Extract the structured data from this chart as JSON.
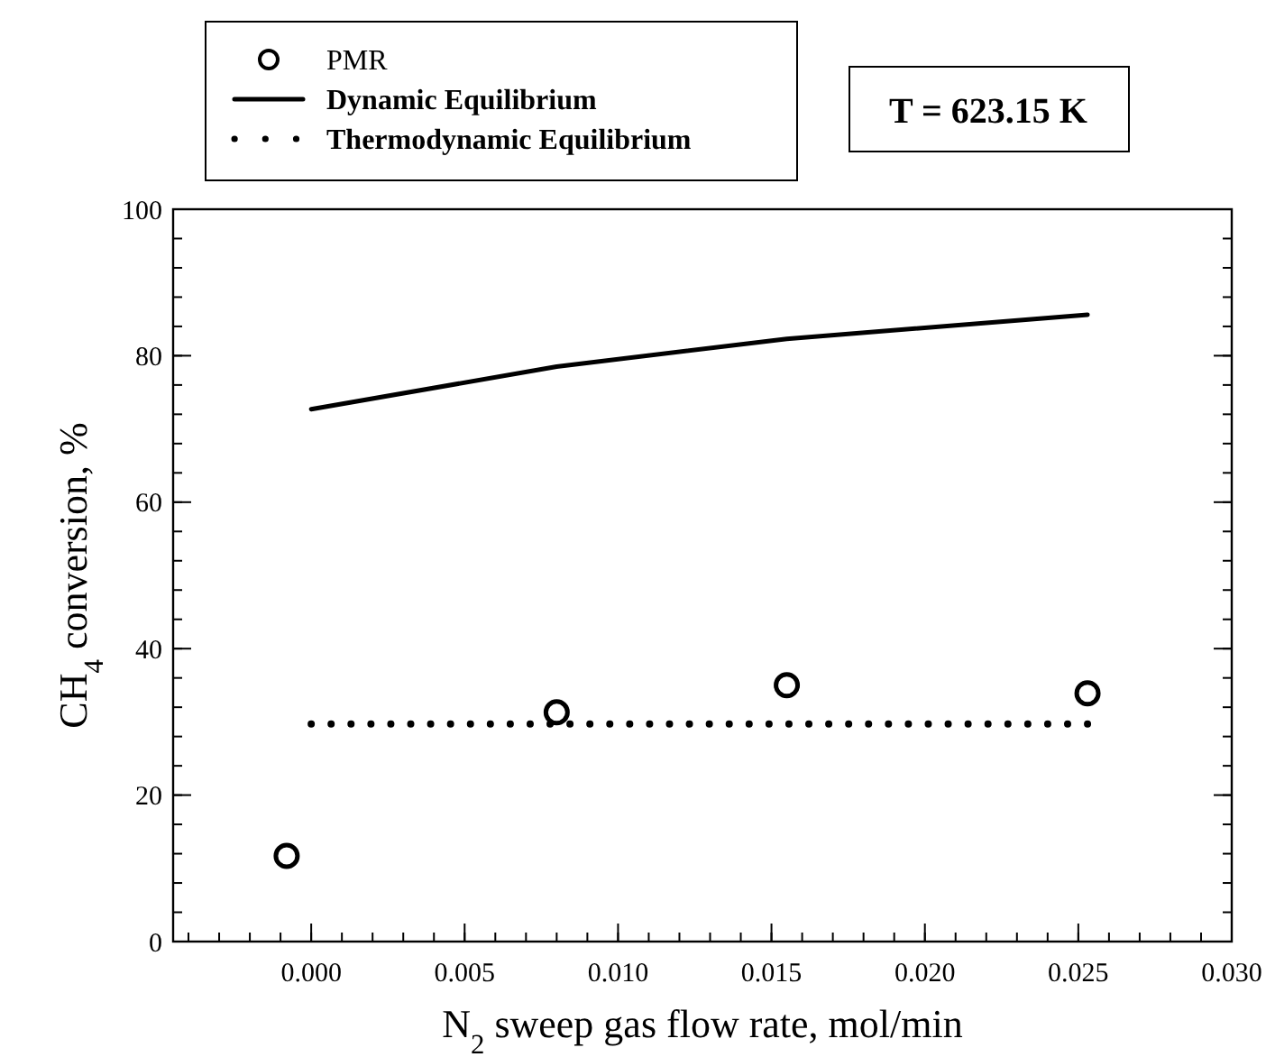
{
  "chart_data": {
    "type": "scatter",
    "xlabel": "N$_{2}$ sweep gas flow rate, mol/min",
    "ylabel": "CH$_{4}$ conversion, %",
    "annotations": [
      "T = 623.15 K"
    ],
    "xlim": [
      -0.0045,
      0.03
    ],
    "xticks": [
      {
        "value": 0,
        "label": "0.000"
      },
      0.005,
      {
        "value": 0.01,
        "label": "0.010"
      },
      0.015,
      {
        "value": 0.02,
        "label": "0.020"
      },
      0.025,
      {
        "value": 0.03,
        "label": "0.030"
      }
    ],
    "ylim": [
      0,
      100
    ],
    "yticks": [
      0,
      20,
      40,
      60,
      80,
      100
    ],
    "grid": false,
    "legend": "top left",
    "series": [
      {
        "name": "PMR",
        "marker": "circle",
        "color": "#000000",
        "x": [
          -0.0008,
          0.008,
          0.0155,
          0.0253
        ],
        "values": [
          11.7,
          31.3,
          35.0,
          33.9
        ]
      },
      {
        "name": "Dynamic Equilibrium",
        "type": "line",
        "line_style": "solid",
        "color": "#000000",
        "x": [
          0,
          0.008,
          0.0155,
          0.0253
        ],
        "values": [
          72.7,
          78.5,
          82.3,
          85.6
        ]
      },
      {
        "name": "Thermodynamic Equilibrium",
        "type": "line",
        "line_style": "dotted",
        "color": "#000000",
        "x": [
          0,
          0.0253
        ],
        "values": [
          29.7,
          29.7
        ]
      }
    ]
  }
}
